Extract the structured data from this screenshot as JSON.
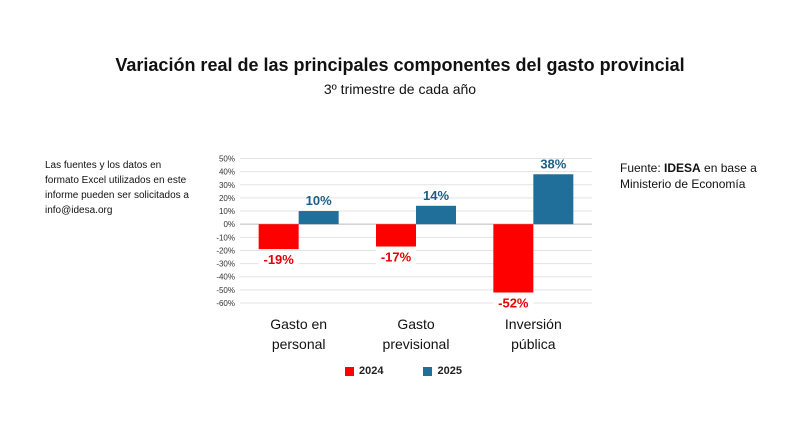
{
  "header": {
    "title": "Variación real de las principales componentes del gasto provincial",
    "subtitle": "3º trimestre de cada año"
  },
  "notes": {
    "left": "Las fuentes y los datos en formato Excel utilizados en este informe pueden ser solicitados a info@idesa.org",
    "right_prefix": "Fuente: ",
    "right_brand": "IDESA",
    "right_suffix": " en base a Ministerio de Economía"
  },
  "colors": {
    "s2024": "#ff0000",
    "s2025": "#1f6f9a"
  },
  "chart_data": {
    "type": "bar",
    "title": "Variación real de las principales componentes del gasto provincial",
    "subtitle": "3º trimestre de cada año",
    "categories": [
      [
        "Gasto en",
        "personal"
      ],
      [
        "Gasto",
        "previsional"
      ],
      [
        "Inversión",
        "pública"
      ]
    ],
    "series": [
      {
        "name": "2024",
        "values": [
          -19,
          -17,
          -52
        ],
        "labels": [
          "-19%",
          "-17%",
          "-52%"
        ]
      },
      {
        "name": "2025",
        "values": [
          10,
          14,
          38
        ],
        "labels": [
          "10%",
          "14%",
          "38%"
        ]
      }
    ],
    "ylim": [
      -60,
      50
    ],
    "yticks": [
      50,
      40,
      30,
      20,
      10,
      0,
      -10,
      -20,
      -30,
      -40,
      -50,
      -60
    ],
    "ytick_labels": [
      "50%",
      "40%",
      "30%",
      "20%",
      "10%",
      "0%",
      "-10%",
      "-20%",
      "-30%",
      "-40%",
      "-50%",
      "-60%"
    ],
    "grid": true,
    "legend": "bottom"
  }
}
